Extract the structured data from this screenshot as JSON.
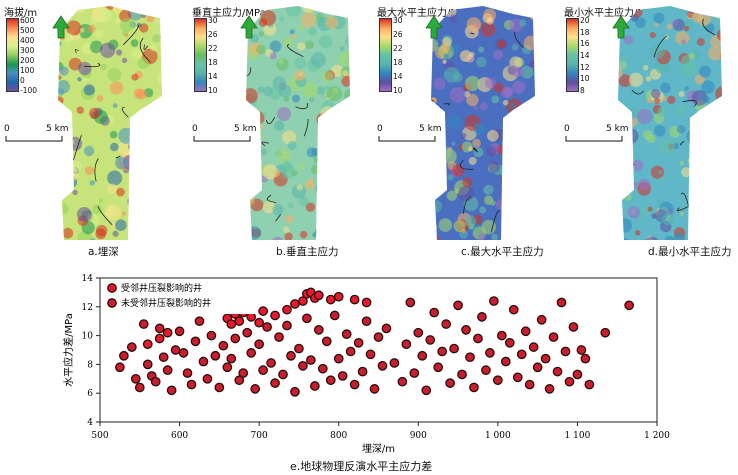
{
  "panels": [
    {
      "title": "海拔/m",
      "caption": "a.埋深",
      "ticks": [
        "600",
        "500",
        "400",
        "300",
        "200",
        "100",
        "0",
        "-100"
      ],
      "colors": [
        "#d7301f",
        "#fc8d59",
        "#fee08b",
        "#d9ef8b",
        "#91cf60",
        "#1a9850",
        "#4393c3",
        "#2166ac",
        "#6a51a3"
      ],
      "scale_label": "5 km"
    },
    {
      "title": "垂直主应力/MPa",
      "caption": "b.垂直主应力",
      "ticks": [
        "30",
        "26",
        "22",
        "18",
        "14",
        "10"
      ],
      "colors": [
        "#d7301f",
        "#fdae61",
        "#fee08b",
        "#a6d96a",
        "#66bd63",
        "#66c2a5",
        "#5ab4ac",
        "#3288bd",
        "#9e6fc4"
      ],
      "scale_label": "5 km"
    },
    {
      "title": "最大水平主应力/MPa",
      "caption": "c.最大水平主应力",
      "ticks": [
        "30",
        "26",
        "22",
        "18",
        "14",
        "10"
      ],
      "colors": [
        "#d7301f",
        "#fdae61",
        "#fee08b",
        "#a6d96a",
        "#66c2a5",
        "#5ab4ac",
        "#3288bd",
        "#5e4fa2",
        "#9e6fc4"
      ],
      "scale_label": "5 km"
    },
    {
      "title": "最小水平主应力/MPa",
      "caption": "d.最小水平主应力",
      "ticks": [
        "20",
        "18",
        "16",
        "14",
        "12",
        "10",
        "8"
      ],
      "colors": [
        "#d7301f",
        "#fdae61",
        "#fee08b",
        "#a6d96a",
        "#66c2a5",
        "#5ab4ac",
        "#3288bd",
        "#5e4fa2",
        "#9e6fc4"
      ],
      "scale_label": "5 km"
    }
  ],
  "chart_data": {
    "type": "scatter",
    "title": "e.地球物理反演水平主应力差",
    "xlabel": "埋深/m",
    "ylabel": "水平应力差/MPa",
    "xlim": [
      500,
      1200
    ],
    "ylim": [
      4,
      14
    ],
    "xticks": [
      "500",
      "600",
      "700",
      "800",
      "900",
      "1 000",
      "1 100",
      "1 200"
    ],
    "yticks": [
      "4",
      "6",
      "8",
      "10",
      "12",
      "14"
    ],
    "legend_position": "top-left",
    "series": [
      {
        "name": "受邻井压裂影响的井",
        "color": "#e8192c",
        "points": [
          [
            560,
            9.4
          ],
          [
            575,
            9.8
          ],
          [
            585,
            10.2
          ],
          [
            660,
            11.2
          ],
          [
            665,
            10.8
          ],
          [
            670,
            11.5
          ],
          [
            675,
            11.0
          ],
          [
            680,
            11.6
          ],
          [
            690,
            11.3
          ],
          [
            700,
            10.9
          ],
          [
            705,
            11.7
          ],
          [
            720,
            11.4
          ],
          [
            735,
            11.8
          ],
          [
            745,
            12.2
          ],
          [
            755,
            12.4
          ],
          [
            760,
            12.9
          ],
          [
            765,
            13.0
          ],
          [
            770,
            12.6
          ],
          [
            775,
            12.8
          ],
          [
            790,
            12.5
          ],
          [
            800,
            12.7
          ],
          [
            820,
            12.5
          ],
          [
            835,
            12.3
          ]
        ]
      },
      {
        "name": "未受邻井压裂影响的井",
        "color": "#c81e2d",
        "points": [
          [
            525,
            7.8
          ],
          [
            530,
            8.6
          ],
          [
            540,
            9.2
          ],
          [
            545,
            7.0
          ],
          [
            550,
            6.4
          ],
          [
            555,
            10.8
          ],
          [
            560,
            8.0
          ],
          [
            565,
            7.2
          ],
          [
            570,
            6.8
          ],
          [
            575,
            10.5
          ],
          [
            580,
            8.5
          ],
          [
            585,
            7.6
          ],
          [
            590,
            6.2
          ],
          [
            595,
            9.0
          ],
          [
            600,
            10.3
          ],
          [
            605,
            8.8
          ],
          [
            610,
            7.4
          ],
          [
            615,
            6.6
          ],
          [
            620,
            9.6
          ],
          [
            625,
            11.0
          ],
          [
            630,
            8.2
          ],
          [
            635,
            7.0
          ],
          [
            640,
            10.0
          ],
          [
            645,
            8.6
          ],
          [
            650,
            6.4
          ],
          [
            655,
            9.3
          ],
          [
            660,
            7.8
          ],
          [
            665,
            8.4
          ],
          [
            670,
            9.8
          ],
          [
            675,
            6.9
          ],
          [
            680,
            7.4
          ],
          [
            685,
            10.2
          ],
          [
            690,
            8.8
          ],
          [
            695,
            6.3
          ],
          [
            700,
            9.4
          ],
          [
            705,
            7.6
          ],
          [
            710,
            10.6
          ],
          [
            715,
            8.1
          ],
          [
            720,
            6.7
          ],
          [
            725,
            9.9
          ],
          [
            730,
            7.3
          ],
          [
            735,
            10.7
          ],
          [
            740,
            8.6
          ],
          [
            745,
            6.1
          ],
          [
            750,
            9.1
          ],
          [
            755,
            7.9
          ],
          [
            760,
            11.2
          ],
          [
            765,
            8.3
          ],
          [
            770,
            6.5
          ],
          [
            775,
            10.4
          ],
          [
            780,
            7.7
          ],
          [
            785,
            9.6
          ],
          [
            790,
            6.9
          ],
          [
            795,
            11.4
          ],
          [
            800,
            8.4
          ],
          [
            805,
            7.2
          ],
          [
            810,
            10.1
          ],
          [
            815,
            8.9
          ],
          [
            820,
            6.6
          ],
          [
            825,
            9.5
          ],
          [
            830,
            7.5
          ],
          [
            835,
            11.0
          ],
          [
            840,
            8.7
          ],
          [
            845,
            6.3
          ],
          [
            850,
            9.9
          ],
          [
            855,
            7.9
          ],
          [
            860,
            10.5
          ],
          [
            870,
            8.1
          ],
          [
            880,
            6.8
          ],
          [
            885,
            9.4
          ],
          [
            890,
            12.3
          ],
          [
            895,
            7.4
          ],
          [
            900,
            10.2
          ],
          [
            905,
            8.6
          ],
          [
            910,
            6.2
          ],
          [
            915,
            9.7
          ],
          [
            920,
            11.6
          ],
          [
            925,
            7.8
          ],
          [
            930,
            8.9
          ],
          [
            935,
            10.8
          ],
          [
            940,
            6.7
          ],
          [
            945,
            9.1
          ],
          [
            950,
            12.1
          ],
          [
            955,
            7.3
          ],
          [
            960,
            10.4
          ],
          [
            965,
            8.5
          ],
          [
            970,
            6.4
          ],
          [
            975,
            9.8
          ],
          [
            980,
            11.3
          ],
          [
            985,
            7.6
          ],
          [
            990,
            8.8
          ],
          [
            995,
            12.4
          ],
          [
            1000,
            6.9
          ],
          [
            1005,
            10.0
          ],
          [
            1010,
            8.2
          ],
          [
            1015,
            9.5
          ],
          [
            1020,
            11.8
          ],
          [
            1025,
            7.1
          ],
          [
            1030,
            8.7
          ],
          [
            1035,
            10.3
          ],
          [
            1040,
            6.6
          ],
          [
            1045,
            9.2
          ],
          [
            1050,
            7.8
          ],
          [
            1055,
            11.1
          ],
          [
            1060,
            8.4
          ],
          [
            1065,
            6.3
          ],
          [
            1070,
            9.9
          ],
          [
            1075,
            7.5
          ],
          [
            1080,
            12.3
          ],
          [
            1085,
            8.9
          ],
          [
            1090,
            6.8
          ],
          [
            1095,
            10.6
          ],
          [
            1100,
            7.3
          ],
          [
            1105,
            9.0
          ],
          [
            1110,
            8.4
          ],
          [
            1115,
            6.6
          ],
          [
            1135,
            10.2
          ],
          [
            1165,
            12.1
          ]
        ]
      }
    ]
  }
}
